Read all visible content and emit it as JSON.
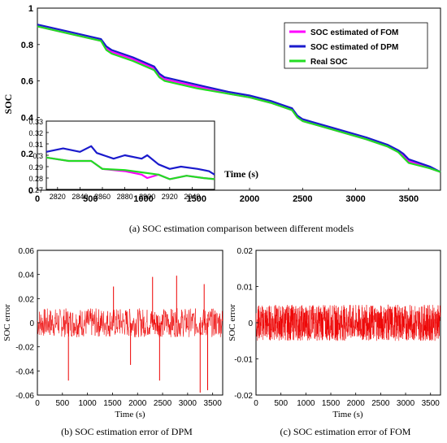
{
  "chart_data": [
    {
      "id": "main",
      "type": "line",
      "caption": "(a) SOC estimation comparison between different models",
      "xlabel": "Time (s)",
      "ylabel": "SOC",
      "xlim": [
        0,
        3800
      ],
      "ylim": [
        0,
        1
      ],
      "xticks": [
        "0",
        "500",
        "1000",
        "1500",
        "2000",
        "2500",
        "3000",
        "3500"
      ],
      "yticks": [
        "0",
        "0.2",
        "0.4",
        "0.6",
        "0.8",
        "1"
      ],
      "grid": false,
      "legend_position": "top-right",
      "series": [
        {
          "name": "SOC estimated of FOM",
          "color": "#ff00ff",
          "x": [
            0,
            300,
            600,
            650,
            700,
            900,
            1100,
            1150,
            1200,
            1500,
            1800,
            2000,
            2200,
            2400,
            2450,
            2500,
            2800,
            3100,
            3300,
            3400,
            3450,
            3500,
            3700,
            3800
          ],
          "y": [
            0.9,
            0.86,
            0.82,
            0.78,
            0.76,
            0.72,
            0.67,
            0.63,
            0.61,
            0.57,
            0.53,
            0.51,
            0.48,
            0.44,
            0.4,
            0.38,
            0.33,
            0.28,
            0.24,
            0.21,
            0.19,
            0.16,
            0.12,
            0.1
          ]
        },
        {
          "name": "SOC estimated of DPM",
          "color": "#1a1acc",
          "x": [
            0,
            300,
            600,
            650,
            700,
            900,
            1100,
            1150,
            1200,
            1500,
            1800,
            2000,
            2200,
            2400,
            2450,
            2500,
            2800,
            3100,
            3300,
            3400,
            3450,
            3500,
            3700,
            3800
          ],
          "y": [
            0.91,
            0.87,
            0.83,
            0.79,
            0.77,
            0.73,
            0.68,
            0.64,
            0.62,
            0.58,
            0.54,
            0.52,
            0.49,
            0.45,
            0.41,
            0.39,
            0.34,
            0.29,
            0.25,
            0.22,
            0.2,
            0.17,
            0.13,
            0.1
          ]
        },
        {
          "name": "Real SOC",
          "color": "#22dd22",
          "x": [
            0,
            300,
            600,
            650,
            700,
            900,
            1100,
            1150,
            1200,
            1500,
            1800,
            2000,
            2200,
            2400,
            2450,
            2500,
            2800,
            3100,
            3300,
            3400,
            3450,
            3500,
            3700,
            3800
          ],
          "y": [
            0.9,
            0.86,
            0.82,
            0.77,
            0.75,
            0.71,
            0.66,
            0.62,
            0.6,
            0.56,
            0.53,
            0.51,
            0.48,
            0.44,
            0.4,
            0.38,
            0.33,
            0.28,
            0.24,
            0.21,
            0.18,
            0.15,
            0.12,
            0.1
          ]
        }
      ]
    },
    {
      "id": "inset",
      "type": "line",
      "xlim": [
        2810,
        2960
      ],
      "ylim": [
        0.27,
        0.33
      ],
      "xticks": [
        "2820",
        "2840",
        "2860",
        "2880",
        "2900",
        "2920",
        "2940"
      ],
      "yticks": [
        "0.27",
        "0.28",
        "0.29",
        "0.3",
        "0.31",
        "0.32",
        "0.33"
      ],
      "series": [
        {
          "name": "SOC estimated of FOM",
          "color": "#ff00ff",
          "x": [
            2810,
            2830,
            2850,
            2860,
            2880,
            2895,
            2900,
            2910,
            2920,
            2935,
            2950,
            2960
          ],
          "y": [
            0.298,
            0.295,
            0.295,
            0.288,
            0.286,
            0.283,
            0.28,
            0.283,
            0.279,
            0.282,
            0.28,
            0.279
          ]
        },
        {
          "name": "SOC estimated of DPM",
          "color": "#1a1acc",
          "x": [
            2810,
            2825,
            2840,
            2850,
            2855,
            2870,
            2880,
            2895,
            2900,
            2910,
            2920,
            2930,
            2945,
            2955,
            2960
          ],
          "y": [
            0.303,
            0.306,
            0.303,
            0.308,
            0.302,
            0.297,
            0.3,
            0.297,
            0.3,
            0.292,
            0.288,
            0.29,
            0.288,
            0.286,
            0.283
          ]
        },
        {
          "name": "Real SOC",
          "color": "#22dd22",
          "x": [
            2810,
            2830,
            2850,
            2860,
            2880,
            2895,
            2910,
            2920,
            2935,
            2950,
            2960
          ],
          "y": [
            0.298,
            0.295,
            0.295,
            0.288,
            0.287,
            0.285,
            0.283,
            0.279,
            0.282,
            0.28,
            0.279
          ]
        }
      ]
    },
    {
      "id": "dpm_error",
      "type": "line",
      "caption": "(b) SOC estimation error of DPM",
      "xlabel": "Time (s)",
      "ylabel": "SOC error",
      "xlim": [
        0,
        3700
      ],
      "ylim": [
        -0.06,
        0.06
      ],
      "xticks": [
        "0",
        "500",
        "1000",
        "1500",
        "2000",
        "2500",
        "3000",
        "3500"
      ],
      "yticks": [
        "-0.06",
        "-0.04",
        "-0.02",
        "0",
        "0.02",
        "0.04",
        "0.06"
      ],
      "series": [
        {
          "name": "",
          "color": "#ee0000",
          "amplitude": 0.012,
          "spikes": [
            {
              "x": 620,
              "y": -0.048
            },
            {
              "x": 1520,
              "y": 0.03
            },
            {
              "x": 1860,
              "y": -0.035
            },
            {
              "x": 2300,
              "y": 0.038
            },
            {
              "x": 2440,
              "y": -0.048
            },
            {
              "x": 2780,
              "y": 0.039
            },
            {
              "x": 3250,
              "y": -0.058
            },
            {
              "x": 3330,
              "y": 0.032
            },
            {
              "x": 3400,
              "y": -0.056
            }
          ]
        }
      ]
    },
    {
      "id": "fom_error",
      "type": "line",
      "caption": "(c) SOC estimation error of FOM",
      "xlabel": "Time (s)",
      "ylabel": "SOC error",
      "xlim": [
        0,
        3700
      ],
      "ylim": [
        -0.02,
        0.02
      ],
      "xticks": [
        "0",
        "500",
        "1000",
        "1500",
        "2000",
        "2500",
        "3000",
        "3500"
      ],
      "yticks": [
        "-0.02",
        "-0.01",
        "0",
        "0.01",
        "0.02"
      ],
      "series": [
        {
          "name": "",
          "color": "#ee0000",
          "amplitude": 0.005
        }
      ]
    }
  ]
}
